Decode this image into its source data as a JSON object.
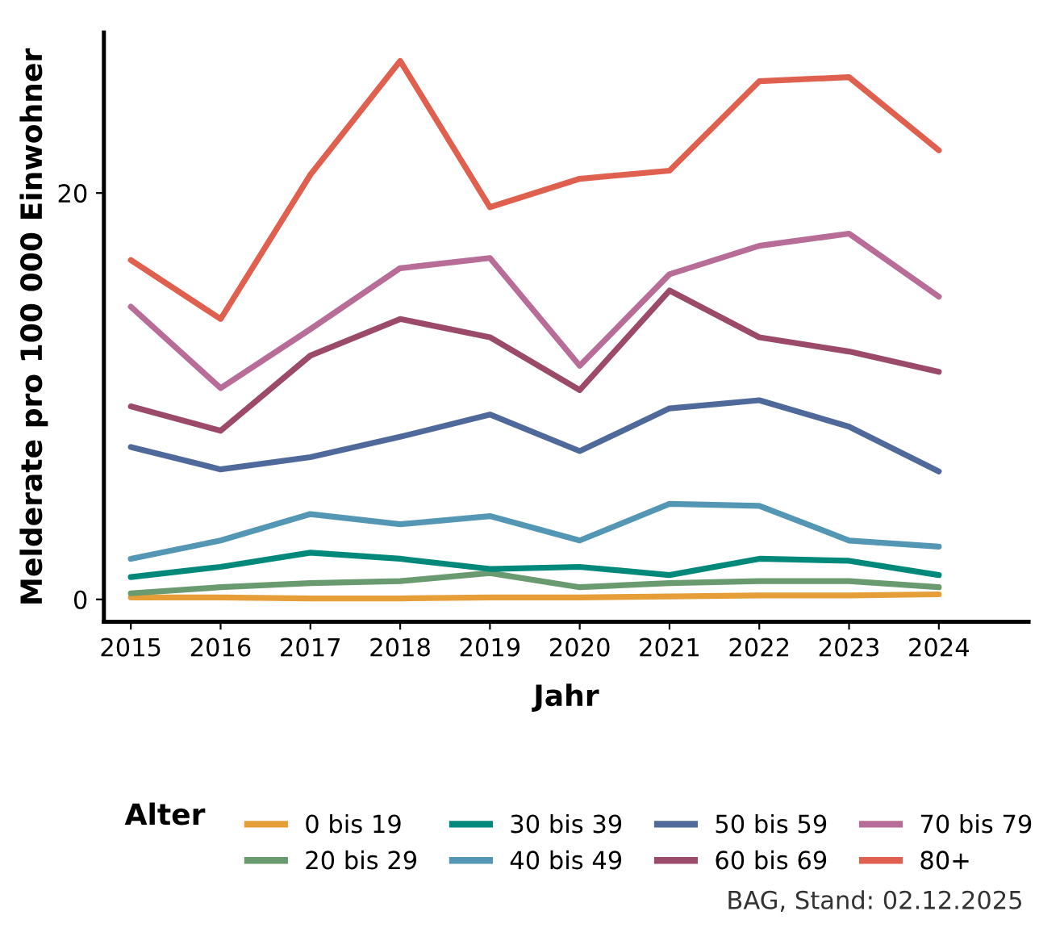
{
  "chart_data": {
    "type": "line",
    "xlabel": "Jahr",
    "ylabel": "Melderate pro 100 000 Einwohner",
    "legend_title": "Alter",
    "legend": "bottom",
    "grid": false,
    "line_style": "solid",
    "x": [
      2015,
      2016,
      2017,
      2018,
      2019,
      2020,
      2021,
      2022,
      2023,
      2024
    ],
    "xlim": [
      2014.7,
      2025.0
    ],
    "xticks": [
      2015,
      2016,
      2017,
      2018,
      2019,
      2020,
      2021,
      2022,
      2023,
      2024
    ],
    "ylim": [
      -1.1,
      27.9
    ],
    "yticks": [
      0,
      20
    ],
    "series": [
      {
        "name": "0 bis 19",
        "color": "#e69f38",
        "values": [
          0.1,
          0.1,
          0.05,
          0.05,
          0.1,
          0.1,
          0.15,
          0.2,
          0.2,
          0.25
        ]
      },
      {
        "name": "20 bis 29",
        "color": "#6a9a6f",
        "values": [
          0.3,
          0.6,
          0.8,
          0.9,
          1.3,
          0.6,
          0.8,
          0.9,
          0.9,
          0.6
        ]
      },
      {
        "name": "30 bis 39",
        "color": "#00897b",
        "values": [
          1.1,
          1.6,
          2.3,
          2.0,
          1.5,
          1.6,
          1.2,
          2.0,
          1.9,
          1.2
        ]
      },
      {
        "name": "40 bis 49",
        "color": "#5497b5",
        "values": [
          2.0,
          2.9,
          4.2,
          3.7,
          4.1,
          2.9,
          4.7,
          4.6,
          2.9,
          2.6
        ]
      },
      {
        "name": "50 bis 59",
        "color": "#4f6a9a",
        "values": [
          7.5,
          6.4,
          7.0,
          8.0,
          9.1,
          7.3,
          9.4,
          9.8,
          8.5,
          6.3
        ]
      },
      {
        "name": "60 bis 69",
        "color": "#9b4a6a",
        "values": [
          9.5,
          8.3,
          12.0,
          13.8,
          12.9,
          10.3,
          15.2,
          12.9,
          12.2,
          11.2
        ]
      },
      {
        "name": "70 bis 79",
        "color": "#b86d99",
        "values": [
          14.4,
          10.4,
          13.3,
          16.3,
          16.8,
          11.5,
          16.0,
          17.4,
          18.0,
          14.9
        ]
      },
      {
        "name": "80+",
        "color": "#e0604f",
        "values": [
          16.7,
          13.8,
          20.9,
          26.5,
          19.3,
          20.7,
          21.1,
          25.5,
          25.7,
          22.1
        ]
      }
    ],
    "annotations": [
      "BAG, Stand: 02.12.2025"
    ]
  }
}
